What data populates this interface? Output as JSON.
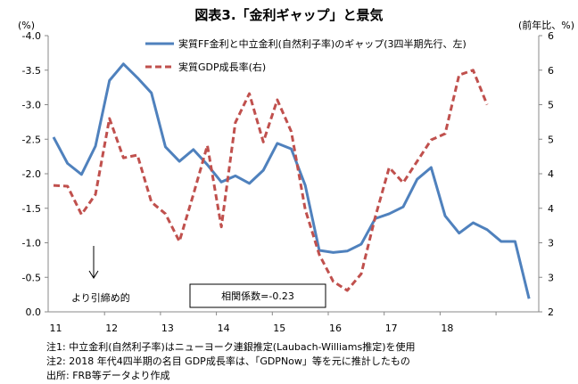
{
  "chart_data": {
    "type": "line",
    "title": "図表3.「金利ギャップ」と景気",
    "ylabel_left": "(%)",
    "ylabel_right": "(前年比、%)",
    "left_ticks": [
      "-4.0",
      "-3.5",
      "-3.0",
      "-2.5",
      "-2.0",
      "-1.5",
      "-1.0",
      "-0.5",
      "0.0"
    ],
    "right_ticks": [
      "6",
      "6",
      "5",
      "5",
      "4",
      "4",
      "3",
      "3",
      "2"
    ],
    "ylim_left": [
      0,
      -4
    ],
    "ylim_right": [
      2,
      6
    ],
    "x_ticks": [
      "11",
      "12",
      "13",
      "14",
      "15",
      "16",
      "17",
      "18"
    ],
    "x_start": "2011Q1",
    "series": [
      {
        "name": "実質FF金利と中立金利(自然利子率)のギャップ(3四半期先行、左)",
        "axis": "left",
        "color": "#4f81bd",
        "style": "solid",
        "values": [
          -2.53,
          -2.15,
          -1.99,
          -2.4,
          -3.35,
          -3.59,
          -3.39,
          -3.17,
          -2.39,
          -2.18,
          -2.35,
          -2.13,
          -1.88,
          -1.97,
          -1.86,
          -2.05,
          -2.44,
          -2.36,
          -1.83,
          -0.89,
          -0.86,
          -0.88,
          -0.98,
          -1.35,
          -1.42,
          -1.52,
          -1.92,
          -2.09,
          -1.39,
          -1.14,
          -1.29,
          -1.19,
          -1.02,
          -1.02,
          -0.19
        ]
      },
      {
        "name": "実質GDP成長率(右)",
        "axis": "right",
        "color": "#c0504d",
        "style": "dashed",
        "values": [
          3.83,
          3.82,
          3.41,
          3.7,
          4.8,
          4.23,
          4.27,
          3.59,
          3.42,
          3.02,
          3.7,
          4.41,
          3.23,
          4.74,
          5.16,
          4.46,
          5.07,
          4.61,
          3.48,
          2.83,
          2.44,
          2.31,
          2.55,
          3.37,
          4.09,
          3.87,
          4.18,
          4.49,
          4.58,
          5.43,
          5.5,
          5.0
        ]
      }
    ],
    "annotations": {
      "arrow_label": "より引締め的",
      "correlation": "相関係数=-0.23"
    },
    "grid": false,
    "legend_placement": "top-center"
  },
  "notes": [
    "注1: 中立金利(自然利子率)はニューヨーク連銀推定(Laubach-Williams推定)を使用",
    "注2: 2018 年代4四半期の名目 GDP成長率は、「GDPNow」等を元に推計したもの",
    "出所: FRB等データより作成"
  ]
}
